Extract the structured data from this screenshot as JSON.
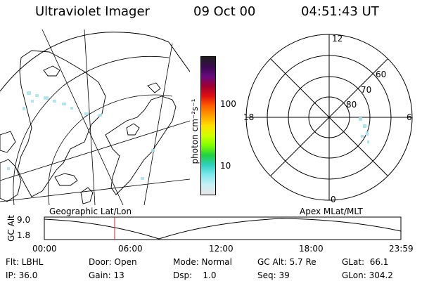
{
  "header": {
    "title": "Ultraviolet Imager",
    "date": "09 Oct 00",
    "time": "04:51:43 UT"
  },
  "colorbar": {
    "unit_label": "photon cm⁻²s⁻¹",
    "ticks": [
      "100",
      "10"
    ],
    "colors": [
      "#202020",
      "#3a0a50",
      "#6a0a80",
      "#a00030",
      "#e01010",
      "#ff6000",
      "#ffa000",
      "#ffe000",
      "#d0ff00",
      "#80ff00",
      "#20d040",
      "#30d0c0",
      "#80e8f0",
      "#c8f0f4",
      "#e8e8e8"
    ]
  },
  "polar_plot": {
    "mlt_labels": {
      "top": "12",
      "bottom": "0",
      "left": "18",
      "right": "6"
    },
    "lat_labels": [
      "60",
      "70",
      "80"
    ]
  },
  "timeline": {
    "ylabel": "GC Alt",
    "y_ticks": [
      "9.0",
      "1.8"
    ],
    "left_caption": "Geographic Lat/Lon",
    "right_caption": "Apex MLat/MLT",
    "x_ticks": [
      "00:00",
      "06:00",
      "12:00",
      "18:00",
      "23:59"
    ],
    "marker_color": "#d02020"
  },
  "footer": {
    "row1": [
      "Flt: LBHL",
      "Door: Open",
      "Mode: Normal",
      "GC Alt: 5.7 Re",
      "GLat:  66.1"
    ],
    "row2": [
      "IP: 36.0",
      "Gain: 13",
      "Dsp:    1.0",
      "Seq: 39",
      "GLon: 304.2"
    ]
  }
}
